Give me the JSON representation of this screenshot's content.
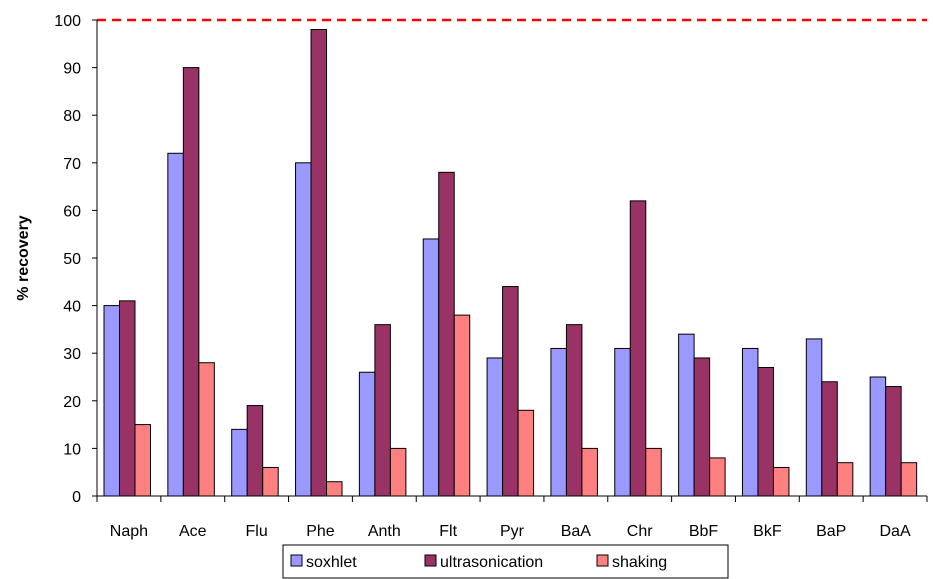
{
  "chart_data": {
    "type": "bar",
    "title": "",
    "xlabel": "",
    "ylabel": "% recovery",
    "ylim": [
      0,
      100
    ],
    "yticks": [
      0,
      10,
      20,
      30,
      40,
      50,
      60,
      70,
      80,
      90,
      100
    ],
    "categories": [
      "Naph",
      "Ace",
      "Flu",
      "Phe",
      "Anth",
      "Flt",
      "Pyr",
      "BaA",
      "Chr",
      "BbF",
      "BkF",
      "BaP",
      "DaA"
    ],
    "series": [
      {
        "name": "soxhlet",
        "color": "#9999ff",
        "values": [
          40,
          72,
          14,
          70,
          26,
          54,
          29,
          31,
          31,
          34,
          31,
          33,
          25
        ]
      },
      {
        "name": "ultrasonication",
        "color": "#993366",
        "values": [
          41,
          90,
          19,
          98,
          36,
          68,
          44,
          36,
          62,
          29,
          27,
          24,
          23
        ]
      },
      {
        "name": "shaking",
        "color": "#ff8080",
        "values": [
          15,
          28,
          6,
          3,
          10,
          38,
          18,
          10,
          10,
          8,
          6,
          7,
          7
        ]
      }
    ],
    "reference_line": {
      "value": 100,
      "color": "#ff0000",
      "style": "dashed"
    },
    "legend": {
      "position": "bottom-center"
    },
    "grid": false
  }
}
